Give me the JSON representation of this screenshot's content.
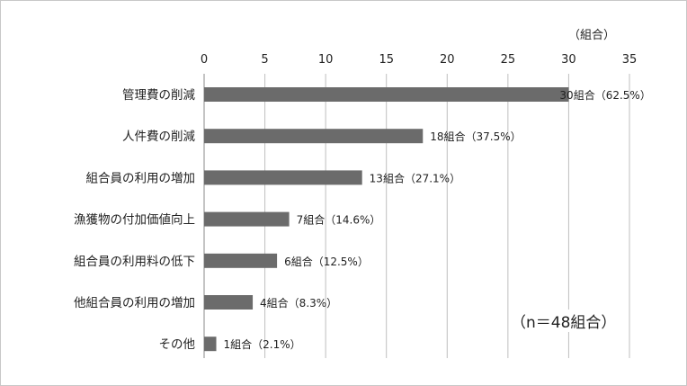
{
  "chart_data": {
    "type": "bar",
    "orientation": "horizontal",
    "unit_label": "（組合）",
    "note": "（n＝48組合）",
    "xlim": [
      0,
      35
    ],
    "ticks": [
      "0",
      "5",
      "10",
      "15",
      "20",
      "25",
      "30",
      "35"
    ],
    "tick_values": [
      0,
      5,
      10,
      15,
      20,
      25,
      30,
      35
    ],
    "grid": true,
    "categories": [
      "管理費の削減",
      "人件費の削減",
      "組合員の利用の増加",
      "漁獲物の付加価値向上",
      "組合員の利用料の低下",
      "他組合員の利用の増加",
      "その他"
    ],
    "values": [
      30,
      18,
      13,
      7,
      6,
      4,
      1
    ],
    "data_labels": [
      "30組合（62.5%）",
      "18組合（37.5%）",
      "13組合（27.1%）",
      "7組合（14.6%）",
      "6組合（12.5%）",
      "4組合（8.3%）",
      "1組合（2.1%）"
    ],
    "colors": {
      "bar": "#6b6b6b",
      "grid": "#bfbfbf",
      "axis": "#8a8a8a"
    }
  }
}
